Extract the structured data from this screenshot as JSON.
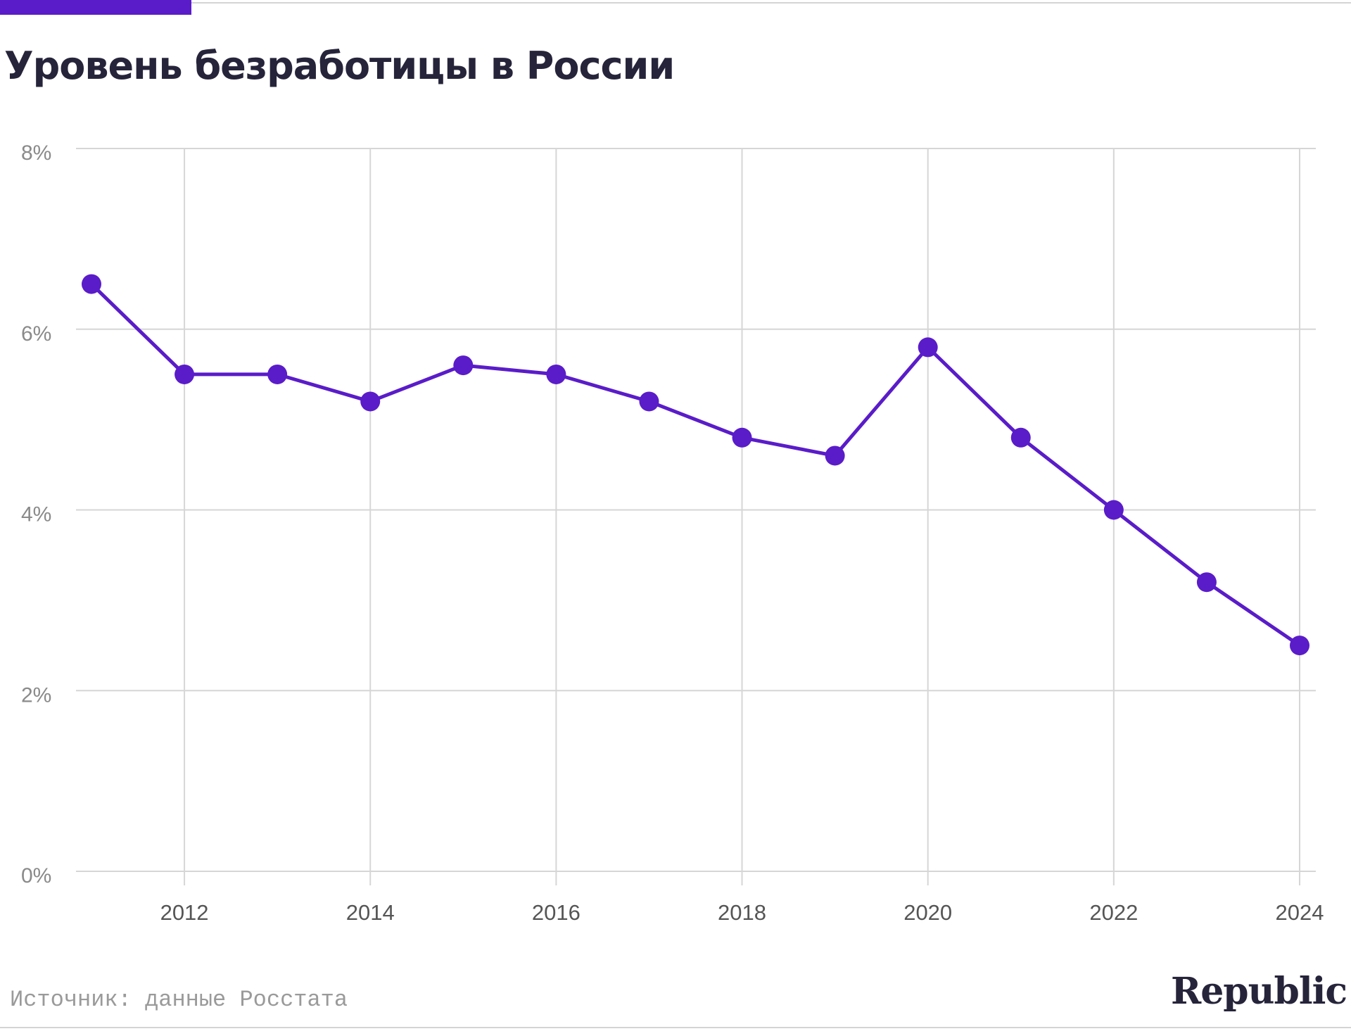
{
  "title": "Уровень безработицы в России",
  "source": "Источник: данные Росстата",
  "brand": "Republic",
  "colors": {
    "accent": "#5a1cc9",
    "grid": "#d6d6d6",
    "tick_label": "#8a8a8a",
    "title": "#26243a"
  },
  "chart_data": {
    "type": "line",
    "title": "Уровень безработицы в России",
    "xlabel": "",
    "ylabel": "",
    "x": [
      2011,
      2012,
      2013,
      2014,
      2015,
      2016,
      2017,
      2018,
      2019,
      2020,
      2021,
      2022,
      2023,
      2024
    ],
    "series": [
      {
        "values": [
          6.5,
          5.5,
          5.5,
          5.2,
          5.6,
          5.5,
          5.2,
          4.8,
          4.6,
          5.8,
          4.8,
          4.0,
          3.2,
          2.5
        ]
      }
    ],
    "xlim": [
      2010.8,
      2024.2
    ],
    "ylim": [
      0,
      8
    ],
    "yticks": [
      0,
      2,
      4,
      6,
      8
    ],
    "ytick_labels": [
      "0%",
      "2%",
      "4%",
      "6%",
      "8%"
    ],
    "xticks": [
      2012,
      2014,
      2016,
      2018,
      2020,
      2022,
      2024
    ],
    "xtick_labels": [
      "2012",
      "2014",
      "2016",
      "2018",
      "2020",
      "2022",
      "2024"
    ],
    "grid": true,
    "markers": true,
    "legend": "none"
  }
}
